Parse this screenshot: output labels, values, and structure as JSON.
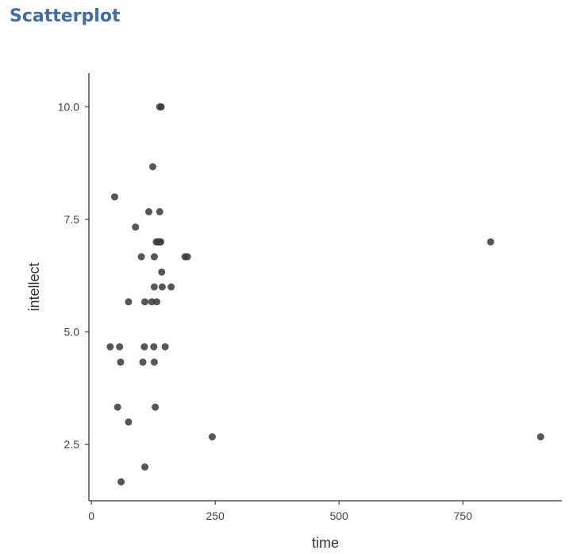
{
  "page": {
    "title": "Scatterplot"
  },
  "chart_data": {
    "type": "scatter",
    "title": "",
    "xlabel": "time",
    "ylabel": "intellect",
    "xlim": [
      -5,
      950
    ],
    "ylim": [
      1.25,
      10.75
    ],
    "x_ticks": [
      0,
      250,
      500,
      750
    ],
    "x_tick_labels": [
      "0",
      "250",
      "500",
      "750"
    ],
    "y_ticks": [
      2.5,
      5.0,
      7.5,
      10.0
    ],
    "y_tick_labels": [
      "2.5",
      "5.0",
      "7.5",
      "10.0"
    ],
    "grid": false,
    "legend": "none",
    "point_color": "#3a3a3a",
    "title_color": "#3e6da8",
    "series": [
      {
        "x": [
          138,
          141,
          124,
          47,
          116,
          138,
          89,
          131,
          135,
          138,
          140,
          101,
          127,
          189,
          194,
          142,
          127,
          143,
          161,
          75,
          108,
          122,
          132,
          806,
          38,
          57,
          107,
          126,
          149,
          59,
          104,
          127,
          53,
          129,
          75,
          244,
          907,
          108,
          60
        ],
        "y": [
          10,
          10,
          8.67,
          8,
          7.67,
          7.67,
          7.33,
          7,
          7,
          7,
          7,
          6.67,
          6.67,
          6.67,
          6.67,
          6.33,
          6,
          6,
          6,
          5.67,
          5.67,
          5.67,
          5.67,
          7,
          4.67,
          4.67,
          4.67,
          4.67,
          4.67,
          4.33,
          4.33,
          4.33,
          3.33,
          3.33,
          3,
          2.67,
          2.67,
          2,
          1.67
        ]
      }
    ]
  }
}
